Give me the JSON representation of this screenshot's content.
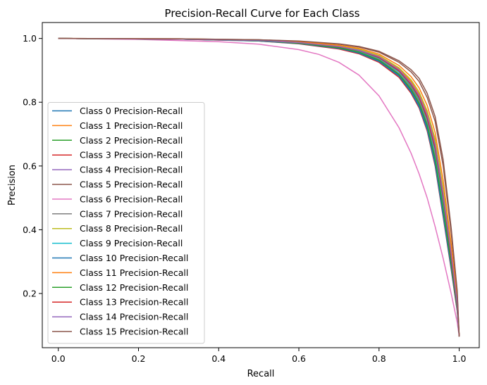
{
  "chart_data": {
    "type": "line",
    "title": "Precision-Recall Curve for Each Class",
    "xlabel": "Recall",
    "ylabel": "Precision",
    "xlim": [
      -0.04,
      1.05
    ],
    "ylim": [
      0.03,
      1.05
    ],
    "xticks": [
      0.0,
      0.2,
      0.4,
      0.6,
      0.8,
      1.0
    ],
    "yticks": [
      0.2,
      0.4,
      0.6,
      0.8,
      1.0
    ],
    "grid": false,
    "legend_position": "lower-left",
    "series": [
      {
        "name": "Class 0 Precision-Recall",
        "color": "#1f77b4",
        "points": [
          [
            0,
            1.0
          ],
          [
            0.3,
            0.998
          ],
          [
            0.5,
            0.993
          ],
          [
            0.6,
            0.985
          ],
          [
            0.7,
            0.97
          ],
          [
            0.75,
            0.955
          ],
          [
            0.8,
            0.93
          ],
          [
            0.85,
            0.885
          ],
          [
            0.88,
            0.835
          ],
          [
            0.9,
            0.79
          ],
          [
            0.92,
            0.72
          ],
          [
            0.94,
            0.61
          ],
          [
            0.96,
            0.45
          ],
          [
            0.98,
            0.28
          ],
          [
            0.995,
            0.15
          ],
          [
            1.0,
            0.065
          ]
        ]
      },
      {
        "name": "Class 1 Precision-Recall",
        "color": "#ff7f0e",
        "points": [
          [
            0,
            1.0
          ],
          [
            0.3,
            0.998
          ],
          [
            0.5,
            0.994
          ],
          [
            0.6,
            0.988
          ],
          [
            0.7,
            0.976
          ],
          [
            0.75,
            0.965
          ],
          [
            0.8,
            0.945
          ],
          [
            0.85,
            0.905
          ],
          [
            0.88,
            0.865
          ],
          [
            0.9,
            0.825
          ],
          [
            0.92,
            0.765
          ],
          [
            0.94,
            0.675
          ],
          [
            0.96,
            0.52
          ],
          [
            0.98,
            0.33
          ],
          [
            0.995,
            0.17
          ],
          [
            1.0,
            0.065
          ]
        ]
      },
      {
        "name": "Class 2 Precision-Recall",
        "color": "#2ca02c",
        "points": [
          [
            0,
            1.0
          ],
          [
            0.3,
            0.998
          ],
          [
            0.5,
            0.993
          ],
          [
            0.6,
            0.986
          ],
          [
            0.7,
            0.973
          ],
          [
            0.75,
            0.96
          ],
          [
            0.8,
            0.937
          ],
          [
            0.85,
            0.895
          ],
          [
            0.88,
            0.85
          ],
          [
            0.9,
            0.808
          ],
          [
            0.92,
            0.745
          ],
          [
            0.94,
            0.645
          ],
          [
            0.96,
            0.49
          ],
          [
            0.98,
            0.31
          ],
          [
            0.995,
            0.16
          ],
          [
            1.0,
            0.065
          ]
        ]
      },
      {
        "name": "Class 3 Precision-Recall",
        "color": "#d62728",
        "points": [
          [
            0,
            1.0
          ],
          [
            0.3,
            0.998
          ],
          [
            0.5,
            0.992
          ],
          [
            0.6,
            0.983
          ],
          [
            0.7,
            0.967
          ],
          [
            0.75,
            0.952
          ],
          [
            0.8,
            0.925
          ],
          [
            0.85,
            0.878
          ],
          [
            0.88,
            0.828
          ],
          [
            0.9,
            0.782
          ],
          [
            0.92,
            0.71
          ],
          [
            0.94,
            0.6
          ],
          [
            0.96,
            0.44
          ],
          [
            0.98,
            0.275
          ],
          [
            0.995,
            0.145
          ],
          [
            1.0,
            0.065
          ]
        ]
      },
      {
        "name": "Class 4 Precision-Recall",
        "color": "#9467bd",
        "points": [
          [
            0,
            1.0
          ],
          [
            0.3,
            0.998
          ],
          [
            0.5,
            0.994
          ],
          [
            0.6,
            0.987
          ],
          [
            0.7,
            0.975
          ],
          [
            0.75,
            0.963
          ],
          [
            0.8,
            0.942
          ],
          [
            0.85,
            0.9
          ],
          [
            0.88,
            0.858
          ],
          [
            0.9,
            0.818
          ],
          [
            0.92,
            0.755
          ],
          [
            0.94,
            0.66
          ],
          [
            0.96,
            0.505
          ],
          [
            0.98,
            0.32
          ],
          [
            0.995,
            0.165
          ],
          [
            1.0,
            0.065
          ]
        ]
      },
      {
        "name": "Class 5 Precision-Recall",
        "color": "#8c564b",
        "points": [
          [
            0,
            1.0
          ],
          [
            0.3,
            0.999
          ],
          [
            0.5,
            0.996
          ],
          [
            0.6,
            0.991
          ],
          [
            0.7,
            0.982
          ],
          [
            0.75,
            0.973
          ],
          [
            0.8,
            0.957
          ],
          [
            0.85,
            0.925
          ],
          [
            0.88,
            0.895
          ],
          [
            0.9,
            0.865
          ],
          [
            0.92,
            0.815
          ],
          [
            0.94,
            0.74
          ],
          [
            0.96,
            0.6
          ],
          [
            0.98,
            0.39
          ],
          [
            0.995,
            0.2
          ],
          [
            1.0,
            0.065
          ]
        ]
      },
      {
        "name": "Class 6 Precision-Recall",
        "color": "#e377c2",
        "points": [
          [
            0,
            1.0
          ],
          [
            0.2,
            0.997
          ],
          [
            0.4,
            0.99
          ],
          [
            0.5,
            0.982
          ],
          [
            0.6,
            0.965
          ],
          [
            0.65,
            0.95
          ],
          [
            0.7,
            0.925
          ],
          [
            0.75,
            0.885
          ],
          [
            0.8,
            0.82
          ],
          [
            0.85,
            0.72
          ],
          [
            0.88,
            0.64
          ],
          [
            0.9,
            0.575
          ],
          [
            0.92,
            0.5
          ],
          [
            0.94,
            0.41
          ],
          [
            0.96,
            0.31
          ],
          [
            0.98,
            0.2
          ],
          [
            0.995,
            0.11
          ],
          [
            1.0,
            0.065
          ]
        ]
      },
      {
        "name": "Class 7 Precision-Recall",
        "color": "#7f7f7f",
        "points": [
          [
            0,
            1.0
          ],
          [
            0.3,
            0.998
          ],
          [
            0.5,
            0.993
          ],
          [
            0.6,
            0.986
          ],
          [
            0.7,
            0.972
          ],
          [
            0.75,
            0.959
          ],
          [
            0.8,
            0.935
          ],
          [
            0.85,
            0.89
          ],
          [
            0.88,
            0.845
          ],
          [
            0.9,
            0.802
          ],
          [
            0.92,
            0.735
          ],
          [
            0.94,
            0.63
          ],
          [
            0.96,
            0.475
          ],
          [
            0.98,
            0.3
          ],
          [
            0.995,
            0.155
          ],
          [
            1.0,
            0.065
          ]
        ]
      },
      {
        "name": "Class 8 Precision-Recall",
        "color": "#bcbd22",
        "points": [
          [
            0,
            1.0
          ],
          [
            0.3,
            0.998
          ],
          [
            0.5,
            0.994
          ],
          [
            0.6,
            0.988
          ],
          [
            0.7,
            0.977
          ],
          [
            0.75,
            0.966
          ],
          [
            0.8,
            0.947
          ],
          [
            0.85,
            0.908
          ],
          [
            0.88,
            0.87
          ],
          [
            0.9,
            0.832
          ],
          [
            0.92,
            0.773
          ],
          [
            0.94,
            0.685
          ],
          [
            0.96,
            0.53
          ],
          [
            0.98,
            0.34
          ],
          [
            0.995,
            0.175
          ],
          [
            1.0,
            0.065
          ]
        ]
      },
      {
        "name": "Class 9 Precision-Recall",
        "color": "#17becf",
        "points": [
          [
            0,
            1.0
          ],
          [
            0.3,
            0.998
          ],
          [
            0.5,
            0.993
          ],
          [
            0.6,
            0.986
          ],
          [
            0.7,
            0.973
          ],
          [
            0.75,
            0.96
          ],
          [
            0.8,
            0.938
          ],
          [
            0.85,
            0.895
          ],
          [
            0.88,
            0.852
          ],
          [
            0.9,
            0.81
          ],
          [
            0.92,
            0.745
          ],
          [
            0.94,
            0.645
          ],
          [
            0.96,
            0.49
          ],
          [
            0.98,
            0.31
          ],
          [
            0.995,
            0.16
          ],
          [
            1.0,
            0.065
          ]
        ]
      },
      {
        "name": "Class 10 Precision-Recall",
        "color": "#1f77b4",
        "points": [
          [
            0,
            1.0
          ],
          [
            0.3,
            0.998
          ],
          [
            0.5,
            0.992
          ],
          [
            0.6,
            0.984
          ],
          [
            0.7,
            0.969
          ],
          [
            0.75,
            0.954
          ],
          [
            0.8,
            0.928
          ],
          [
            0.85,
            0.882
          ],
          [
            0.88,
            0.832
          ],
          [
            0.9,
            0.786
          ],
          [
            0.92,
            0.715
          ],
          [
            0.94,
            0.605
          ],
          [
            0.96,
            0.445
          ],
          [
            0.98,
            0.28
          ],
          [
            0.995,
            0.148
          ],
          [
            1.0,
            0.065
          ]
        ]
      },
      {
        "name": "Class 11 Precision-Recall",
        "color": "#ff7f0e",
        "points": [
          [
            0,
            1.0
          ],
          [
            0.3,
            0.999
          ],
          [
            0.5,
            0.995
          ],
          [
            0.6,
            0.99
          ],
          [
            0.7,
            0.979
          ],
          [
            0.75,
            0.969
          ],
          [
            0.8,
            0.951
          ],
          [
            0.85,
            0.915
          ],
          [
            0.88,
            0.88
          ],
          [
            0.9,
            0.845
          ],
          [
            0.92,
            0.79
          ],
          [
            0.94,
            0.705
          ],
          [
            0.96,
            0.555
          ],
          [
            0.98,
            0.355
          ],
          [
            0.995,
            0.18
          ],
          [
            1.0,
            0.065
          ]
        ]
      },
      {
        "name": "Class 12 Precision-Recall",
        "color": "#2ca02c",
        "points": [
          [
            0,
            1.0
          ],
          [
            0.3,
            0.998
          ],
          [
            0.5,
            0.993
          ],
          [
            0.6,
            0.985
          ],
          [
            0.7,
            0.971
          ],
          [
            0.75,
            0.957
          ],
          [
            0.8,
            0.932
          ],
          [
            0.85,
            0.887
          ],
          [
            0.88,
            0.84
          ],
          [
            0.9,
            0.796
          ],
          [
            0.92,
            0.728
          ],
          [
            0.94,
            0.622
          ],
          [
            0.96,
            0.465
          ],
          [
            0.98,
            0.295
          ],
          [
            0.995,
            0.152
          ],
          [
            1.0,
            0.065
          ]
        ]
      },
      {
        "name": "Class 13 Precision-Recall",
        "color": "#d62728",
        "points": [
          [
            0,
            1.0
          ],
          [
            0.3,
            0.998
          ],
          [
            0.5,
            0.994
          ],
          [
            0.6,
            0.987
          ],
          [
            0.7,
            0.974
          ],
          [
            0.75,
            0.962
          ],
          [
            0.8,
            0.94
          ],
          [
            0.85,
            0.898
          ],
          [
            0.88,
            0.855
          ],
          [
            0.9,
            0.814
          ],
          [
            0.92,
            0.75
          ],
          [
            0.94,
            0.655
          ],
          [
            0.96,
            0.5
          ],
          [
            0.98,
            0.315
          ],
          [
            0.995,
            0.162
          ],
          [
            1.0,
            0.065
          ]
        ]
      },
      {
        "name": "Class 14 Precision-Recall",
        "color": "#9467bd",
        "points": [
          [
            0,
            1.0
          ],
          [
            0.3,
            0.998
          ],
          [
            0.5,
            0.994
          ],
          [
            0.6,
            0.987
          ],
          [
            0.7,
            0.975
          ],
          [
            0.75,
            0.963
          ],
          [
            0.8,
            0.943
          ],
          [
            0.85,
            0.902
          ],
          [
            0.88,
            0.86
          ],
          [
            0.9,
            0.821
          ],
          [
            0.92,
            0.76
          ],
          [
            0.94,
            0.668
          ],
          [
            0.96,
            0.512
          ],
          [
            0.98,
            0.325
          ],
          [
            0.995,
            0.168
          ],
          [
            1.0,
            0.065
          ]
        ]
      },
      {
        "name": "Class 15 Precision-Recall",
        "color": "#8c564b",
        "points": [
          [
            0,
            1.0
          ],
          [
            0.3,
            0.999
          ],
          [
            0.5,
            0.996
          ],
          [
            0.6,
            0.992
          ],
          [
            0.7,
            0.983
          ],
          [
            0.75,
            0.975
          ],
          [
            0.8,
            0.96
          ],
          [
            0.85,
            0.93
          ],
          [
            0.88,
            0.902
          ],
          [
            0.9,
            0.875
          ],
          [
            0.92,
            0.828
          ],
          [
            0.94,
            0.755
          ],
          [
            0.96,
            0.62
          ],
          [
            0.98,
            0.405
          ],
          [
            0.995,
            0.21
          ],
          [
            1.0,
            0.065
          ]
        ]
      }
    ]
  }
}
